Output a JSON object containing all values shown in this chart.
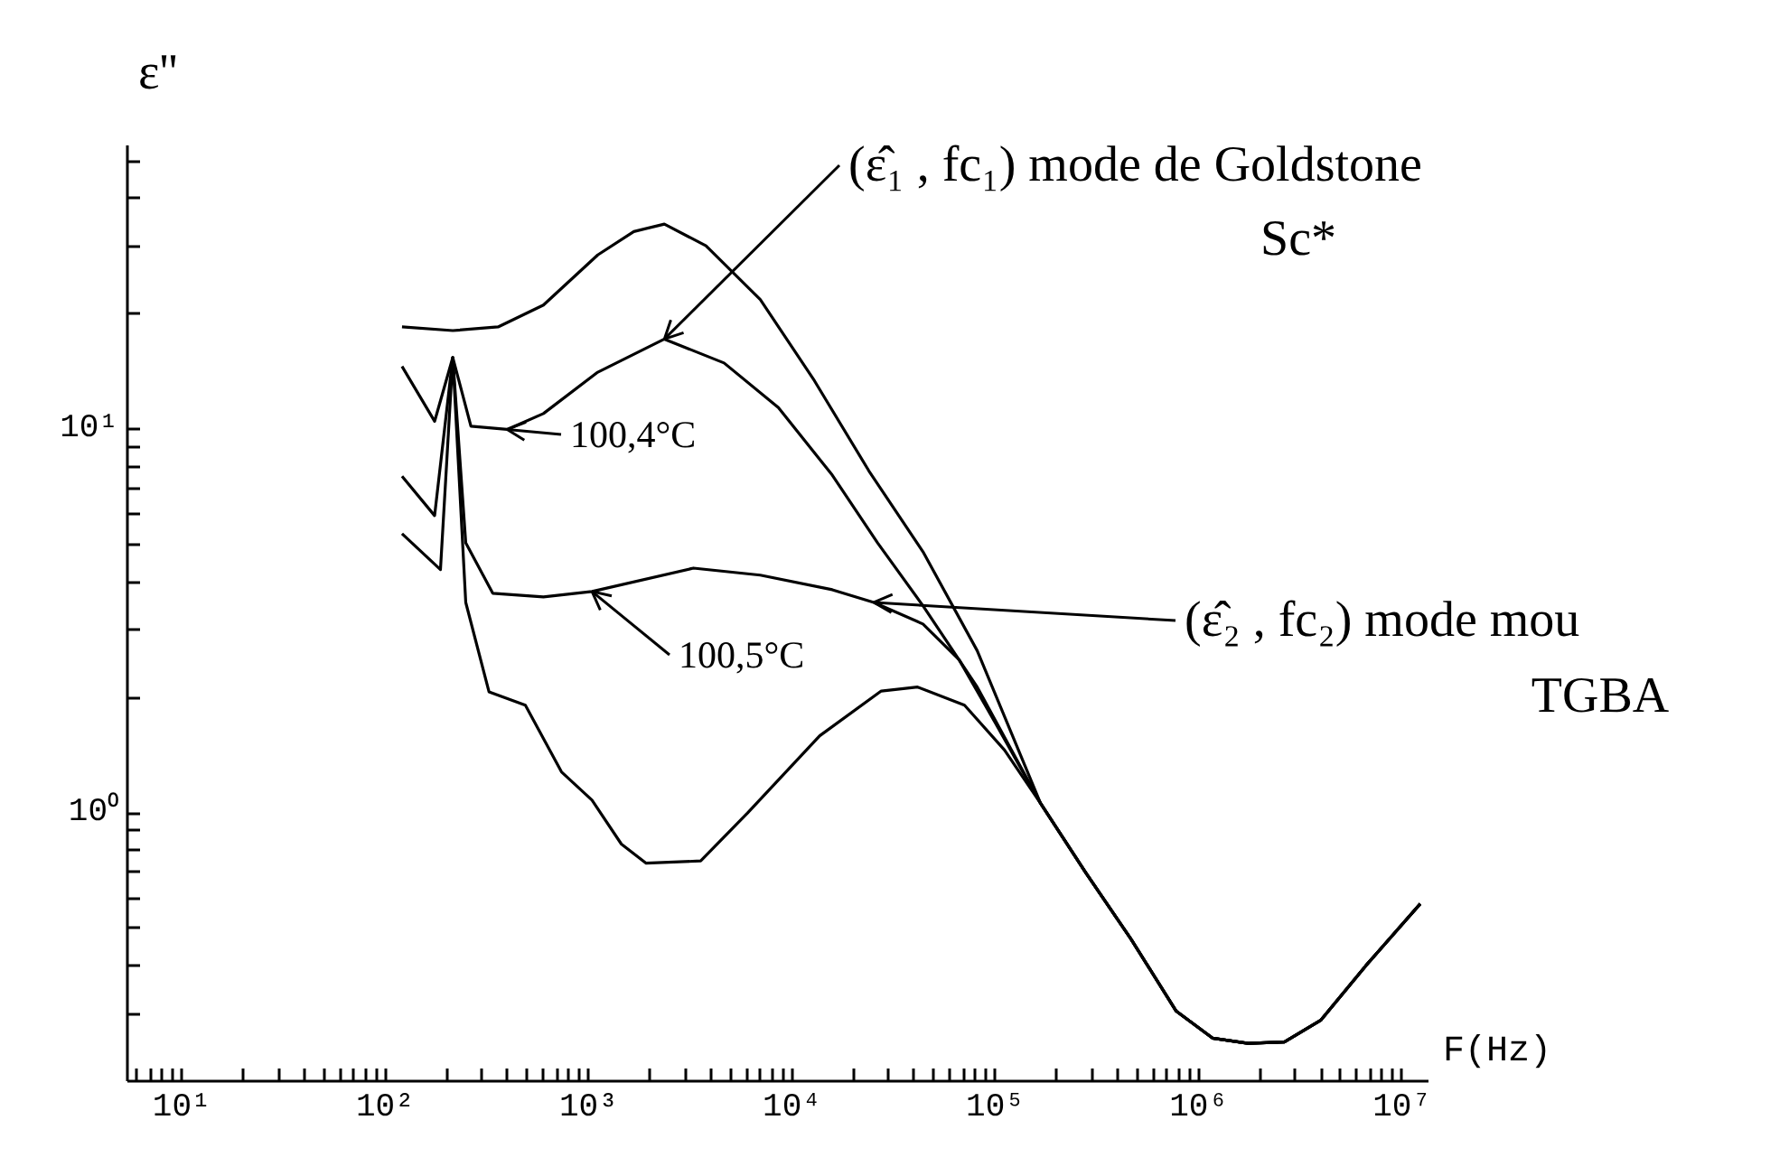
{
  "chart_data": {
    "type": "line",
    "xlabel": "F(Hz)",
    "ylabel": "ε''",
    "log": "xy",
    "grid": false,
    "xlim": [
      5.4,
      13500000
    ],
    "ylim": [
      0.2,
      55
    ],
    "xticks": [
      {
        "value": 6,
        "label": null
      },
      {
        "value": 7,
        "label": null
      },
      {
        "value": 8,
        "label": null
      },
      {
        "value": 9,
        "label": null
      },
      {
        "value": 10,
        "label": "10¹"
      },
      {
        "value": 20,
        "label": null
      },
      {
        "value": 30,
        "label": null
      },
      {
        "value": 40,
        "label": null
      },
      {
        "value": 50,
        "label": null
      },
      {
        "value": 60,
        "label": null
      },
      {
        "value": 70,
        "label": null
      },
      {
        "value": 80,
        "label": null
      },
      {
        "value": 90,
        "label": null
      },
      {
        "value": 100,
        "label": "10²"
      },
      {
        "value": 200,
        "label": null
      },
      {
        "value": 300,
        "label": null
      },
      {
        "value": 400,
        "label": null
      },
      {
        "value": 500,
        "label": null
      },
      {
        "value": 600,
        "label": null
      },
      {
        "value": 700,
        "label": null
      },
      {
        "value": 800,
        "label": null
      },
      {
        "value": 900,
        "label": null
      },
      {
        "value": 1000,
        "label": "10³"
      },
      {
        "value": 2000,
        "label": null
      },
      {
        "value": 3000,
        "label": null
      },
      {
        "value": 4000,
        "label": null
      },
      {
        "value": 5000,
        "label": null
      },
      {
        "value": 6000,
        "label": null
      },
      {
        "value": 7000,
        "label": null
      },
      {
        "value": 8000,
        "label": null
      },
      {
        "value": 9000,
        "label": null
      },
      {
        "value": 10000,
        "label": "10⁴"
      },
      {
        "value": 20000,
        "label": null
      },
      {
        "value": 30000,
        "label": null
      },
      {
        "value": 40000,
        "label": null
      },
      {
        "value": 50000,
        "label": null
      },
      {
        "value": 60000,
        "label": null
      },
      {
        "value": 70000,
        "label": null
      },
      {
        "value": 80000,
        "label": null
      },
      {
        "value": 90000,
        "label": null
      },
      {
        "value": 100000,
        "label": "10⁵"
      },
      {
        "value": 200000,
        "label": null
      },
      {
        "value": 300000,
        "label": null
      },
      {
        "value": 400000,
        "label": null
      },
      {
        "value": 500000,
        "label": null
      },
      {
        "value": 600000,
        "label": null
      },
      {
        "value": 700000,
        "label": null
      },
      {
        "value": 800000,
        "label": null
      },
      {
        "value": 900000,
        "label": null
      },
      {
        "value": 1000000,
        "label": "10⁶"
      },
      {
        "value": 2000000,
        "label": null
      },
      {
        "value": 3000000,
        "label": null
      },
      {
        "value": 4000000,
        "label": null
      },
      {
        "value": 5000000,
        "label": null
      },
      {
        "value": 6000000,
        "label": null
      },
      {
        "value": 7000000,
        "label": null
      },
      {
        "value": 8000000,
        "label": null
      },
      {
        "value": 9000000,
        "label": null
      },
      {
        "value": 10000000,
        "label": "10⁷"
      }
    ],
    "yticks": [
      {
        "value": 0.3,
        "label": null
      },
      {
        "value": 0.4,
        "label": null
      },
      {
        "value": 0.5,
        "label": null
      },
      {
        "value": 0.6,
        "label": null
      },
      {
        "value": 0.7,
        "label": null
      },
      {
        "value": 0.8,
        "label": null
      },
      {
        "value": 0.9,
        "label": null
      },
      {
        "value": 1,
        "label": "10⁰"
      },
      {
        "value": 2,
        "label": null
      },
      {
        "value": 3,
        "label": null
      },
      {
        "value": 4,
        "label": null
      },
      {
        "value": 5,
        "label": null
      },
      {
        "value": 6,
        "label": null
      },
      {
        "value": 7,
        "label": null
      },
      {
        "value": 8,
        "label": null
      },
      {
        "value": 9,
        "label": null
      },
      {
        "value": 10,
        "label": "10¹"
      },
      {
        "value": 20,
        "label": null
      },
      {
        "value": 30,
        "label": null
      },
      {
        "value": 40,
        "label": null
      },
      {
        "value": 50,
        "label": null
      }
    ],
    "series": [
      {
        "color": "#000000",
        "x": [
          121,
          215,
          359,
          600,
          1110,
          1670,
          2360,
          3780,
          6990,
          12900,
          23900,
          44100,
          81500,
          167000,
          278000,
          464000,
          774000,
          1170000,
          1750000,
          2640000,
          3980000,
          6640000,
          12300000
        ],
        "values": [
          18.5,
          18.1,
          18.5,
          21.1,
          28.5,
          32.8,
          34.3,
          30.1,
          21.8,
          13.4,
          7.8,
          4.8,
          2.65,
          1.06,
          0.7,
          0.47,
          0.305,
          0.259,
          0.251,
          0.253,
          0.288,
          0.4,
          0.58
        ]
      },
      {
        "color": "#000000",
        "x": [
          121,
          175,
          215,
          264,
          398,
          600,
          1110,
          2360,
          4640,
          8580,
          15800,
          26400,
          44100,
          81500,
          167000,
          278000,
          464000,
          774000,
          1170000,
          1750000,
          2640000,
          3980000,
          6640000,
          12300000
        ],
        "values": [
          14.6,
          10.5,
          15.4,
          10.2,
          10.0,
          11.0,
          14.1,
          17.2,
          14.9,
          11.4,
          7.6,
          5.06,
          3.47,
          2.13,
          1.06,
          0.7,
          0.47,
          0.305,
          0.259,
          0.251,
          0.253,
          0.288,
          0.4,
          0.58
        ]
      },
      {
        "color": "#000000",
        "x": [
          121,
          175,
          215,
          249,
          338,
          600,
          1040,
          3280,
          6990,
          15800,
          25300,
          44100,
          66400,
          100000,
          167000,
          278000,
          464000,
          774000,
          1170000,
          1750000,
          2640000,
          3980000,
          6640000,
          12300000
        ],
        "values": [
          7.55,
          5.96,
          15.4,
          5.06,
          3.74,
          3.66,
          3.78,
          4.35,
          4.17,
          3.82,
          3.54,
          3.11,
          2.51,
          1.72,
          1.06,
          0.7,
          0.47,
          0.305,
          0.259,
          0.251,
          0.253,
          0.288,
          0.4,
          0.58
        ]
      },
      {
        "color": "#000000",
        "x": [
          121,
          187,
          215,
          249,
          324,
          489,
          736,
          1040,
          1450,
          1920,
          3560,
          6050,
          13700,
          27500,
          41500,
          70600,
          111000,
          167000,
          278000,
          464000,
          774000,
          1170000,
          1750000,
          2640000,
          3980000,
          6640000,
          12300000
        ],
        "values": [
          5.35,
          4.31,
          15.4,
          3.54,
          2.07,
          1.91,
          1.28,
          1.08,
          0.83,
          0.74,
          0.75,
          1.0,
          1.59,
          2.08,
          2.13,
          1.91,
          1.46,
          1.06,
          0.7,
          0.47,
          0.305,
          0.259,
          0.251,
          0.253,
          0.288,
          0.4,
          0.58
        ]
      }
    ],
    "annotations": [
      {
        "text": "(ε̂₁ , fc₁)  mode de Goldstone",
        "x": 2360,
        "y": 17.2
      },
      "Sc*",
      {
        "text": "(ε̂₂ , fc₂)  mode mou",
        "x": 25300,
        "y": 3.54
      },
      "TGBA",
      {
        "text": "100,4°C",
        "x": 398,
        "y": 10.0
      },
      {
        "text": "100,5°C",
        "x": 1040,
        "y": 3.78
      }
    ]
  }
}
